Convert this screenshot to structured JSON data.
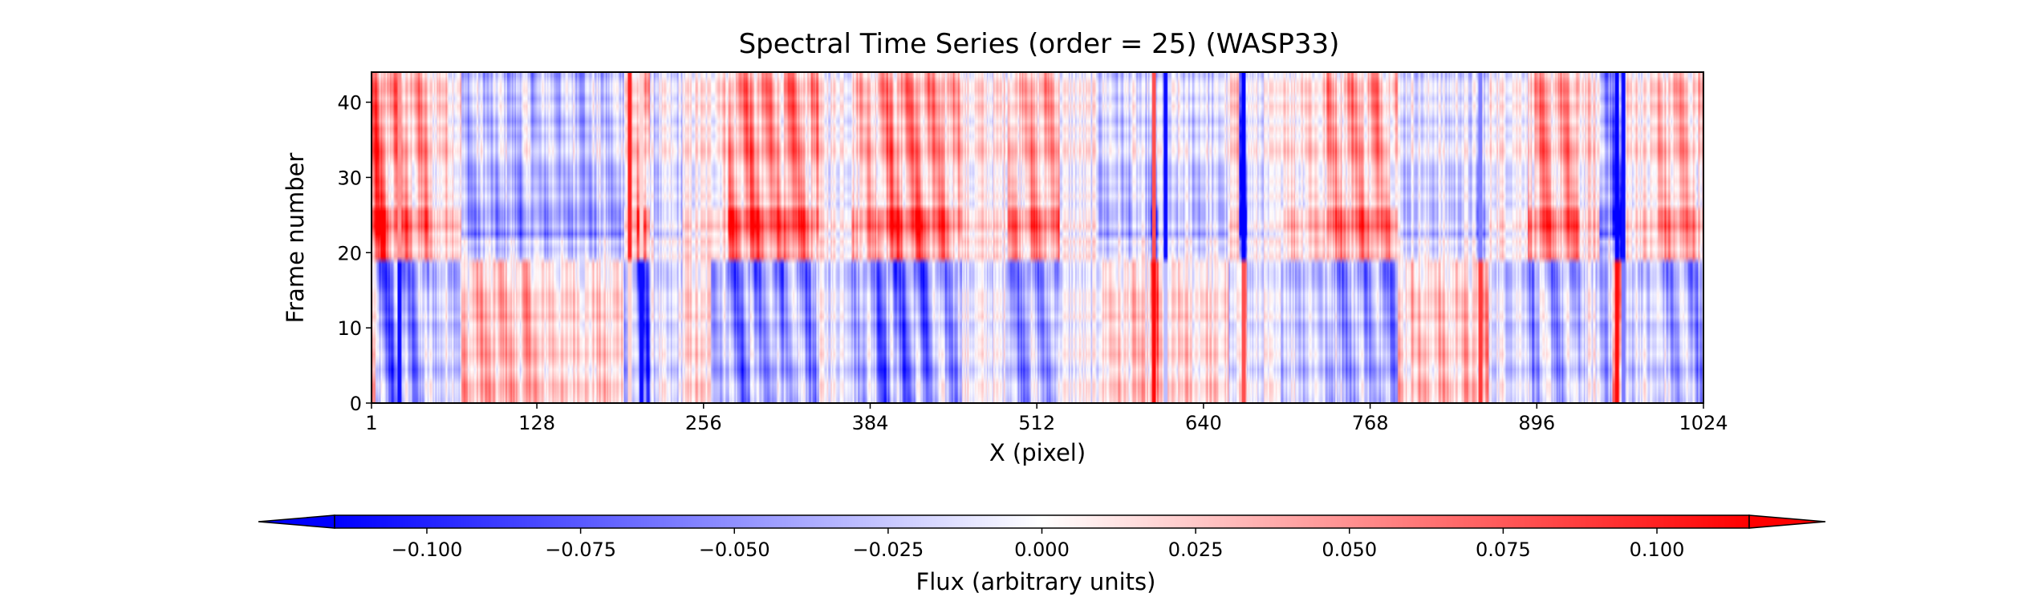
{
  "chart_data": {
    "type": "heatmap",
    "title": "Spectral Time Series (order = 25) (WASP33)",
    "xlabel": "X (pixel)",
    "ylabel": "Frame number",
    "xlim": [
      1,
      1024
    ],
    "ylim": [
      0,
      44
    ],
    "x_ticks": [
      1,
      128,
      256,
      384,
      512,
      640,
      768,
      896,
      1024
    ],
    "x_tick_labels": [
      "1",
      "128",
      "256",
      "384",
      "512",
      "640",
      "768",
      "896",
      "1024"
    ],
    "y_ticks": [
      0,
      10,
      20,
      30,
      40
    ],
    "y_tick_labels": [
      "0",
      "10",
      "20",
      "30",
      "40"
    ],
    "grid": false,
    "n_frames": 44,
    "frame_break": 18.5,
    "colormap": "bwr",
    "colors": {
      "negative": "#0000ff",
      "zero": "#ffffff",
      "positive": "#ff0000"
    },
    "colorbar": {
      "label": "Flux (arbitrary units)",
      "orientation": "horizontal",
      "position": "bottom",
      "extend": "both",
      "vmin": -0.115,
      "vmax": 0.115,
      "ticks": [
        -0.1,
        -0.075,
        -0.05,
        -0.025,
        0.0,
        0.025,
        0.05,
        0.075,
        0.1
      ],
      "tick_labels": [
        "−0.100",
        "−0.075",
        "−0.050",
        "−0.025",
        "0.000",
        "0.025",
        "0.050",
        "0.075",
        "0.100"
      ]
    },
    "columns": [
      {
        "x0": 1,
        "x1": 4,
        "before": 0.06,
        "after": 0.09
      },
      {
        "x0": 4,
        "x1": 12,
        "before": -0.1,
        "after": 0.1
      },
      {
        "x0": 12,
        "x1": 25,
        "before": -0.09,
        "after": 0.07
      },
      {
        "x0": 25,
        "x1": 45,
        "before": -0.07,
        "after": 0.06
      },
      {
        "x0": 45,
        "x1": 70,
        "before": -0.03,
        "after": 0.03
      },
      {
        "x0": 70,
        "x1": 128,
        "before": 0.05,
        "after": -0.045
      },
      {
        "x0": 128,
        "x1": 195,
        "before": 0.03,
        "after": -0.04
      },
      {
        "x0": 195,
        "x1": 205,
        "before": -0.05,
        "after": 0.03
      },
      {
        "x0": 205,
        "x1": 215,
        "before": -0.1,
        "after": 0.08
      },
      {
        "x0": 215,
        "x1": 240,
        "before": -0.03,
        "after": -0.02
      },
      {
        "x0": 240,
        "x1": 262,
        "before": 0.02,
        "after": 0.01
      },
      {
        "x0": 262,
        "x1": 275,
        "before": -0.04,
        "after": 0.03
      },
      {
        "x0": 275,
        "x1": 300,
        "before": -0.085,
        "after": 0.08
      },
      {
        "x0": 300,
        "x1": 345,
        "before": -0.07,
        "after": 0.07
      },
      {
        "x0": 345,
        "x1": 370,
        "before": -0.01,
        "after": 0.01
      },
      {
        "x0": 370,
        "x1": 390,
        "before": -0.05,
        "after": 0.05
      },
      {
        "x0": 390,
        "x1": 430,
        "before": -0.09,
        "after": 0.08
      },
      {
        "x0": 430,
        "x1": 455,
        "before": -0.065,
        "after": 0.06
      },
      {
        "x0": 455,
        "x1": 490,
        "before": -0.01,
        "after": 0.015
      },
      {
        "x0": 490,
        "x1": 530,
        "before": -0.065,
        "after": 0.06
      },
      {
        "x0": 530,
        "x1": 560,
        "before": -0.01,
        "after": 0.0
      },
      {
        "x0": 560,
        "x1": 600,
        "before": 0.03,
        "after": -0.03
      },
      {
        "x0": 600,
        "x1": 606,
        "before": 0.09,
        "after": -0.08
      },
      {
        "x0": 606,
        "x1": 660,
        "before": 0.025,
        "after": -0.025
      },
      {
        "x0": 660,
        "x1": 668,
        "before": -0.03,
        "after": 0.02
      },
      {
        "x0": 668,
        "x1": 674,
        "before": 0.06,
        "after": -0.1
      },
      {
        "x0": 674,
        "x1": 700,
        "before": -0.02,
        "after": -0.01
      },
      {
        "x0": 700,
        "x1": 735,
        "before": -0.03,
        "after": 0.03
      },
      {
        "x0": 735,
        "x1": 790,
        "before": -0.06,
        "after": 0.065
      },
      {
        "x0": 790,
        "x1": 850,
        "before": 0.04,
        "after": -0.02
      },
      {
        "x0": 850,
        "x1": 860,
        "before": 0.06,
        "after": -0.04
      },
      {
        "x0": 860,
        "x1": 890,
        "before": -0.02,
        "after": 0.01
      },
      {
        "x0": 890,
        "x1": 930,
        "before": -0.06,
        "after": 0.06
      },
      {
        "x0": 930,
        "x1": 945,
        "before": -0.02,
        "after": 0.02
      },
      {
        "x0": 945,
        "x1": 955,
        "before": -0.045,
        "after": -0.06
      },
      {
        "x0": 955,
        "x1": 962,
        "before": 0.1,
        "after": -0.1
      },
      {
        "x0": 962,
        "x1": 990,
        "before": -0.03,
        "after": 0.02
      },
      {
        "x0": 990,
        "x1": 1024,
        "before": -0.06,
        "after": 0.05
      }
    ],
    "lines": [
      {
        "x": 22,
        "before": -0.11,
        "after": 0.05
      },
      {
        "x": 199,
        "before": 0.02,
        "after": 0.1
      },
      {
        "x": 208,
        "before": -0.11,
        "after": 0.02
      },
      {
        "x": 602,
        "before": 0.11,
        "after": 0.08
      },
      {
        "x": 611,
        "before": -0.03,
        "after": -0.11
      },
      {
        "x": 671,
        "before": 0.08,
        "after": -0.115
      },
      {
        "x": 853,
        "before": 0.09,
        "after": -0.06
      },
      {
        "x": 958,
        "before": 0.11,
        "after": -0.115
      },
      {
        "x": 963,
        "before": -0.06,
        "after": -0.11
      }
    ]
  }
}
